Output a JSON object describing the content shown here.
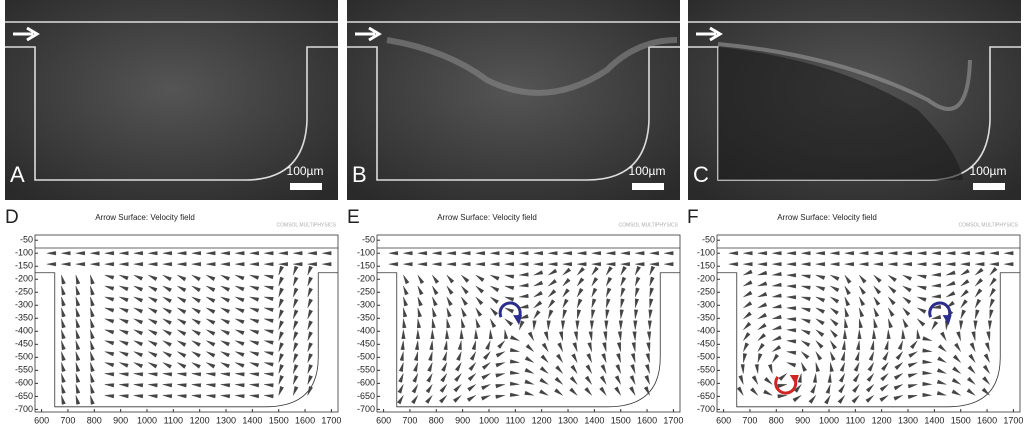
{
  "images": [
    {
      "label": "A",
      "scale": "100µm"
    },
    {
      "label": "B",
      "scale": "100µm"
    },
    {
      "label": "C",
      "scale": "100µm"
    }
  ],
  "plot_axes": {
    "xlim": [
      575,
      1725
    ],
    "ylim": [
      -30,
      -710
    ],
    "xticks": [
      600,
      700,
      800,
      900,
      1000,
      1100,
      1200,
      1300,
      1400,
      1500,
      1600,
      1700
    ],
    "yticks": [
      -50,
      -100,
      -150,
      -200,
      -250,
      -300,
      -350,
      -400,
      -450,
      -500,
      -550,
      -600,
      -650,
      -700
    ]
  },
  "plots": [
    {
      "label": "D",
      "title": "Arrow Surface: Velocity field",
      "logo": "COMSOL MULTIPHYSICS"
    },
    {
      "label": "E",
      "title": "Arrow Surface: Velocity field",
      "logo": "COMSOL MULTIPHYSICS"
    },
    {
      "label": "F",
      "title": "Arrow Surface: Velocity field",
      "logo": "COMSOL MULTIPHYSICS"
    }
  ]
}
